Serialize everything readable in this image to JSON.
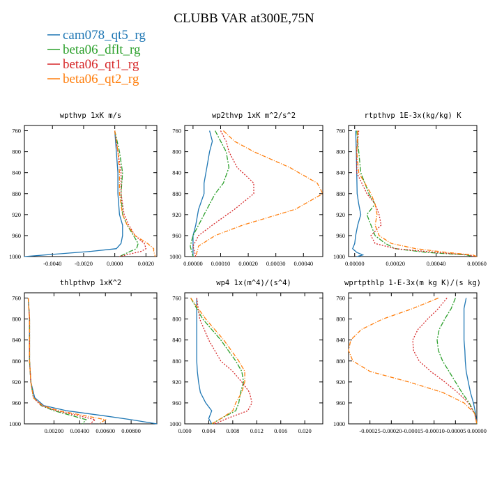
{
  "figure": {
    "title": "CLUBB VAR at300E,75N"
  },
  "series": [
    {
      "name": "cam078_qt5_rg",
      "color": "#1f77b4",
      "dash": ""
    },
    {
      "name": "beta06_dflt_rg",
      "color": "#2ca02c",
      "dash": "7,2,2,2"
    },
    {
      "name": "beta06_qt1_rg",
      "color": "#d62728",
      "dash": "2,2"
    },
    {
      "name": "beta06_qt2_rg",
      "color": "#ff7f0e",
      "dash": "6,2,1,2"
    }
  ],
  "chart_data": [
    {
      "type": "line",
      "title": "wpthvp 1xK m/s",
      "ylim": [
        1000,
        750
      ],
      "yticks": [
        "760",
        "800",
        "840",
        "880",
        "920",
        "960",
        "1000"
      ],
      "xlim": [
        -0.0058,
        0.0027
      ],
      "xticks": [
        "-0.0040",
        "-0.0020",
        "0.0000",
        "0.0020"
      ],
      "y": [
        760,
        800,
        840,
        880,
        920,
        940,
        960,
        975,
        985,
        990,
        1000
      ],
      "series": [
        {
          "name": "cam078_qt5_rg",
          "values": [
            0.0,
            0.0001,
            0.0002,
            0.0002,
            0.0003,
            0.0005,
            0.0005,
            0.0004,
            0.0001,
            -0.0015,
            -0.0058
          ]
        },
        {
          "name": "beta06_dflt_rg",
          "values": [
            0.0,
            0.0003,
            0.0005,
            0.0004,
            0.0005,
            0.0008,
            0.0012,
            0.0015,
            0.0014,
            0.001,
            0.0003
          ]
        },
        {
          "name": "beta06_qt1_rg",
          "values": [
            0.0,
            0.0002,
            0.0004,
            0.0004,
            0.0006,
            0.0009,
            0.0013,
            0.0019,
            0.002,
            0.0017,
            0.0003
          ]
        },
        {
          "name": "beta06_qt2_rg",
          "values": [
            0.0,
            0.0002,
            0.0003,
            0.0003,
            0.0005,
            0.0008,
            0.0013,
            0.0021,
            0.0025,
            0.0025,
            0.0026
          ]
        }
      ]
    },
    {
      "type": "line",
      "title": "wp2thvp 1xK m^2/s^2",
      "ylim": [
        1000,
        750
      ],
      "yticks": [
        "760",
        "800",
        "840",
        "880",
        "920",
        "960",
        "1000"
      ],
      "xlim": [
        -3e-05,
        0.00047
      ],
      "xticks": [
        "0.00000",
        "0.00010",
        "0.00020",
        "0.00030",
        "0.00040"
      ],
      "y": [
        760,
        780,
        800,
        830,
        860,
        880,
        910,
        940,
        960,
        980,
        1000
      ],
      "series": [
        {
          "name": "cam078_qt5_rg",
          "values": [
            6e-05,
            7e-05,
            6e-05,
            5e-05,
            4e-05,
            4e-05,
            2e-05,
            1e-05,
            0.0,
            0.0,
            0.0
          ]
        },
        {
          "name": "beta06_dflt_rg",
          "values": [
            8e-05,
            0.0001,
            0.00012,
            0.00013,
            0.00011,
            8e-05,
            5e-05,
            2e-05,
            0.0,
            -1e-05,
            0.0
          ]
        },
        {
          "name": "beta06_qt1_rg",
          "values": [
            0.0001,
            0.00012,
            0.00013,
            0.00016,
            0.00022,
            0.00022,
            0.00015,
            7e-05,
            2e-05,
            0.0,
            1e-05
          ]
        },
        {
          "name": "beta06_qt2_rg",
          "values": [
            0.00011,
            0.00015,
            0.00022,
            0.00035,
            0.00045,
            0.00047,
            0.00037,
            0.00018,
            8e-05,
            2e-05,
            1e-05
          ]
        }
      ]
    },
    {
      "type": "line",
      "title": "rtpthvp 1E-3x(kg/kg) K",
      "ylim": [
        1000,
        750
      ],
      "yticks": [
        "760",
        "800",
        "840",
        "880",
        "920",
        "960",
        "1000"
      ],
      "xlim": [
        -3e-05,
        0.0006
      ],
      "xticks": [
        "0.00000",
        "0.00020",
        "0.00040",
        "0.00060"
      ],
      "y": [
        760,
        800,
        840,
        880,
        900,
        920,
        940,
        960,
        975,
        985,
        992,
        997,
        1000
      ],
      "series": [
        {
          "name": "cam078_qt5_rg",
          "values": [
            5e-06,
            8e-06,
            1e-05,
            1.2e-05,
            2e-05,
            3e-05,
            1.5e-05,
            5e-06,
            0.0,
            -1e-05,
            1e-05,
            4e-05,
            1e-05
          ]
        },
        {
          "name": "beta06_dflt_rg",
          "values": [
            1e-05,
            2e-05,
            3e-05,
            7e-05,
            0.0001,
            6e-05,
            8e-05,
            0.0001,
            0.00015,
            0.0002,
            0.00035,
            0.00055,
            0.00058
          ]
        },
        {
          "name": "beta06_qt1_rg",
          "values": [
            2e-05,
            1e-05,
            1e-05,
            6e-05,
            0.0001,
            0.00012,
            0.00013,
            8e-05,
            0.0001,
            0.0002,
            0.0004,
            0.00056,
            0.00059
          ]
        },
        {
          "name": "beta06_qt2_rg",
          "values": [
            1.5e-05,
            1e-05,
            2e-05,
            8e-05,
            0.0001,
            0.00011,
            0.0001,
            0.00012,
            0.00018,
            0.0003,
            0.00045,
            0.00058,
            0.0006
          ]
        }
      ]
    },
    {
      "type": "line",
      "title": "thlpthvp 1xK^2",
      "ylim": [
        1000,
        750
      ],
      "yticks": [
        "760",
        "800",
        "840",
        "880",
        "920",
        "960",
        "1000"
      ],
      "xlim": [
        -0.0003,
        0.01
      ],
      "xticks": [
        "0.00200",
        "0.00400",
        "0.00600",
        "0.00800"
      ],
      "y": [
        760,
        800,
        840,
        880,
        920,
        950,
        965,
        975,
        985,
        992,
        1000
      ],
      "series": [
        {
          "name": "cam078_qt5_rg",
          "values": [
            0.0,
            0.0001,
            0.0001,
            0.0001,
            0.0002,
            0.0005,
            0.0012,
            0.003,
            0.006,
            0.008,
            0.01
          ]
        },
        {
          "name": "beta06_dflt_rg",
          "values": [
            0.0,
            0.0001,
            0.0001,
            0.0001,
            0.0002,
            0.0004,
            0.001,
            0.002,
            0.0035,
            0.0045,
            0.0042
          ]
        },
        {
          "name": "beta06_qt1_rg",
          "values": [
            0.0,
            0.0001,
            0.0001,
            0.0001,
            0.0002,
            0.0004,
            0.001,
            0.0022,
            0.004,
            0.0052,
            0.0048
          ]
        },
        {
          "name": "beta06_qt2_rg",
          "values": [
            0.0,
            0.0001,
            0.0001,
            0.0001,
            0.0002,
            0.0004,
            0.0011,
            0.0024,
            0.0045,
            0.006,
            0.0055
          ]
        }
      ]
    },
    {
      "type": "line",
      "title": "wp4 1x(m^4)/(s^4)",
      "ylim": [
        1000,
        750
      ],
      "yticks": [
        "760",
        "800",
        "840",
        "880",
        "920",
        "960",
        "1000"
      ],
      "xlim": [
        0,
        0.023
      ],
      "xticks": [
        "0.000",
        "0.004",
        "0.008",
        "0.012",
        "0.016",
        "0.020"
      ],
      "y": [
        760,
        800,
        840,
        880,
        900,
        920,
        940,
        960,
        975,
        990,
        1000
      ],
      "series": [
        {
          "name": "cam078_qt5_rg",
          "values": [
            0.002,
            0.002,
            0.002,
            0.002,
            0.0021,
            0.0023,
            0.0026,
            0.0035,
            0.0045,
            0.004,
            0.0045
          ]
        },
        {
          "name": "beta06_dflt_rg",
          "values": [
            0.001,
            0.003,
            0.006,
            0.0085,
            0.0095,
            0.0098,
            0.0093,
            0.009,
            0.0085,
            0.006,
            0.0045
          ]
        },
        {
          "name": "beta06_qt1_rg",
          "values": [
            0.002,
            0.0025,
            0.004,
            0.006,
            0.008,
            0.0095,
            0.0108,
            0.0112,
            0.0105,
            0.007,
            0.005
          ]
        },
        {
          "name": "beta06_qt2_rg",
          "values": [
            0.001,
            0.0035,
            0.0065,
            0.009,
            0.01,
            0.01,
            0.0095,
            0.0085,
            0.008,
            0.006,
            0.0045
          ]
        }
      ]
    },
    {
      "type": "line",
      "title": "wprtpthlp 1-E-3x(m kg K)/(s kg)",
      "ylim": [
        1000,
        750
      ],
      "yticks": [
        "760",
        "800",
        "840",
        "880",
        "920",
        "960",
        "1000"
      ],
      "xlim": [
        -0.0003,
        0.0
      ],
      "xticks": [
        "-0.00025",
        "-0.00020",
        "-0.00015",
        "-0.00010",
        "-0.00005",
        "0.00000"
      ],
      "y": [
        760,
        780,
        800,
        820,
        840,
        860,
        880,
        900,
        920,
        940,
        960,
        980,
        1000
      ],
      "series": [
        {
          "name": "cam078_qt5_rg",
          "values": [
            -2.5e-05,
            -3e-05,
            -3e-05,
            -3e-05,
            -3e-05,
            -2.8e-05,
            -2.7e-05,
            -2.5e-05,
            -2e-05,
            -1.5e-05,
            -8e-06,
            -3e-06,
            0.0
          ]
        },
        {
          "name": "beta06_dflt_rg",
          "values": [
            -5e-05,
            -6e-05,
            -7.5e-05,
            -8.8e-05,
            -9.3e-05,
            -9e-05,
            -8e-05,
            -6.5e-05,
            -5e-05,
            -3.5e-05,
            -1.8e-05,
            -5e-06,
            0.0
          ]
        },
        {
          "name": "beta06_qt1_rg",
          "values": [
            -7e-05,
            -9e-05,
            -0.000115,
            -0.000138,
            -0.00015,
            -0.000148,
            -0.000135,
            -0.000108,
            -7.5e-05,
            -4.5e-05,
            -2e-05,
            -5e-06,
            0.0
          ]
        },
        {
          "name": "beta06_qt2_rg",
          "values": [
            -9e-05,
            -0.00015,
            -0.00022,
            -0.00027,
            -0.000295,
            -0.0003,
            -0.00029,
            -0.00025,
            -0.00016,
            -8e-05,
            -3e-05,
            -5e-06,
            0.0
          ]
        }
      ]
    }
  ]
}
